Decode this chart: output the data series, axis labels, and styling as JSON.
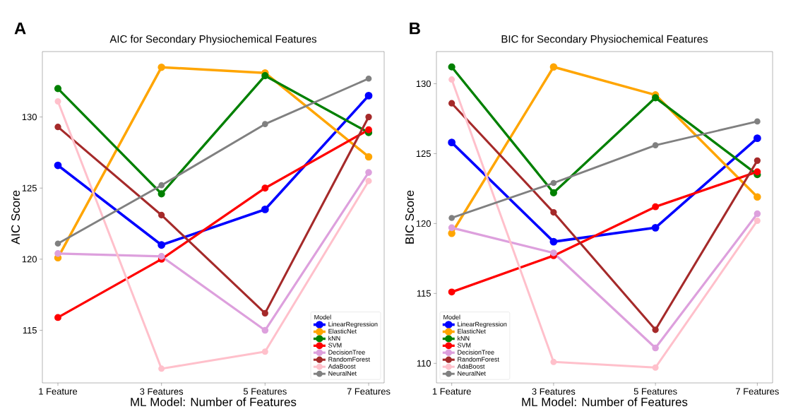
{
  "chart_data": [
    {
      "type": "line",
      "title": "AIC for Secondary Physiochemical Features",
      "xlabel": "ML Model: Number of Features",
      "ylabel": "AIC Score",
      "legend_title": "Model",
      "annotations": [
        "A"
      ],
      "categories": [
        "1 Feature",
        "3 Features",
        "5 Features",
        "7 Features"
      ],
      "ylim": [
        111.3,
        134.6
      ],
      "yticks": [
        115,
        120,
        125,
        130
      ],
      "grid": false,
      "legend": "bottom right",
      "marker": "circle",
      "line_style": "solid",
      "series": [
        {
          "name": "LinearRegression",
          "color": "#0000ff",
          "values": [
            126.6,
            121.0,
            123.5,
            131.5
          ]
        },
        {
          "name": "ElasticNet",
          "color": "#ffa500",
          "values": [
            120.1,
            133.5,
            133.1,
            127.2
          ]
        },
        {
          "name": "kNN",
          "color": "#008000",
          "values": [
            132.0,
            124.6,
            132.9,
            128.9
          ]
        },
        {
          "name": "SVM",
          "color": "#ff0000",
          "values": [
            115.9,
            120.0,
            125.0,
            129.1
          ]
        },
        {
          "name": "DecisionTree",
          "color": "#dda0dd",
          "values": [
            120.4,
            120.2,
            115.0,
            126.1
          ]
        },
        {
          "name": "RandomForest",
          "color": "#a52a2a",
          "values": [
            129.3,
            123.1,
            116.2,
            130.0
          ]
        },
        {
          "name": "AdaBoost",
          "color": "#ffc0cb",
          "values": [
            131.1,
            112.3,
            113.5,
            125.5
          ]
        },
        {
          "name": "NeuralNet",
          "color": "#808080",
          "values": [
            121.1,
            125.2,
            129.5,
            132.7
          ]
        }
      ]
    },
    {
      "type": "line",
      "title": "BIC for Secondary Physiochemical Features",
      "xlabel": "ML Model: Number of Features",
      "ylabel": "BIC Score",
      "legend_title": "Model",
      "annotations": [
        "B"
      ],
      "categories": [
        "1 Feature",
        "3 Features",
        "5 Features",
        "7 Features"
      ],
      "ylim": [
        108.6,
        132.3
      ],
      "yticks": [
        110,
        115,
        120,
        125,
        130
      ],
      "grid": false,
      "legend": "bottom left",
      "marker": "circle",
      "line_style": "solid",
      "series": [
        {
          "name": "LinearRegression",
          "color": "#0000ff",
          "values": [
            125.8,
            118.7,
            119.7,
            126.1
          ]
        },
        {
          "name": "ElasticNet",
          "color": "#ffa500",
          "values": [
            119.3,
            131.2,
            129.2,
            121.9
          ]
        },
        {
          "name": "kNN",
          "color": "#008000",
          "values": [
            131.2,
            122.2,
            129.0,
            123.5
          ]
        },
        {
          "name": "SVM",
          "color": "#ff0000",
          "values": [
            115.1,
            117.7,
            121.2,
            123.7
          ]
        },
        {
          "name": "DecisionTree",
          "color": "#dda0dd",
          "values": [
            119.7,
            117.9,
            111.1,
            120.7
          ]
        },
        {
          "name": "RandomForest",
          "color": "#a52a2a",
          "values": [
            128.6,
            120.8,
            112.4,
            124.5
          ]
        },
        {
          "name": "AdaBoost",
          "color": "#ffc0cb",
          "values": [
            130.3,
            110.1,
            109.7,
            120.2
          ]
        },
        {
          "name": "NeuralNet",
          "color": "#808080",
          "values": [
            120.4,
            122.9,
            125.6,
            127.3
          ]
        }
      ]
    }
  ]
}
